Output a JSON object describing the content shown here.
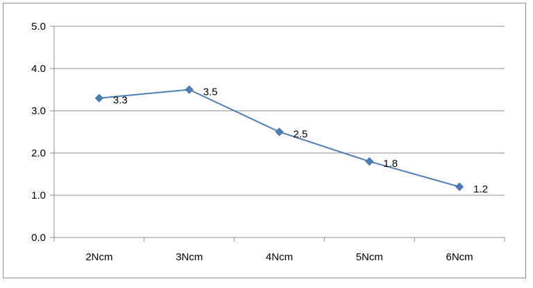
{
  "chart_data": {
    "type": "line",
    "title": "",
    "xlabel": "",
    "ylabel": "",
    "categories": [
      "2Ncm",
      "3Ncm",
      "4Ncm",
      "5Ncm",
      "6Ncm"
    ],
    "series": [
      {
        "values": [
          3.3,
          3.5,
          2.5,
          1.8,
          1.2
        ]
      }
    ],
    "data_labels": [
      "3.3",
      "3.5",
      "2.5",
      "1.8",
      "1.2"
    ],
    "ylim": [
      0,
      5
    ],
    "yticks": [
      "0.0",
      "1.0",
      "2.0",
      "3.0",
      "4.0",
      "5.0"
    ],
    "grid": true,
    "legend": "none",
    "colors": {
      "line": "#4a7ebb",
      "marker": "#4a7ebb",
      "grid": "#8c8c8c",
      "axis": "#8c8c8c"
    }
  }
}
